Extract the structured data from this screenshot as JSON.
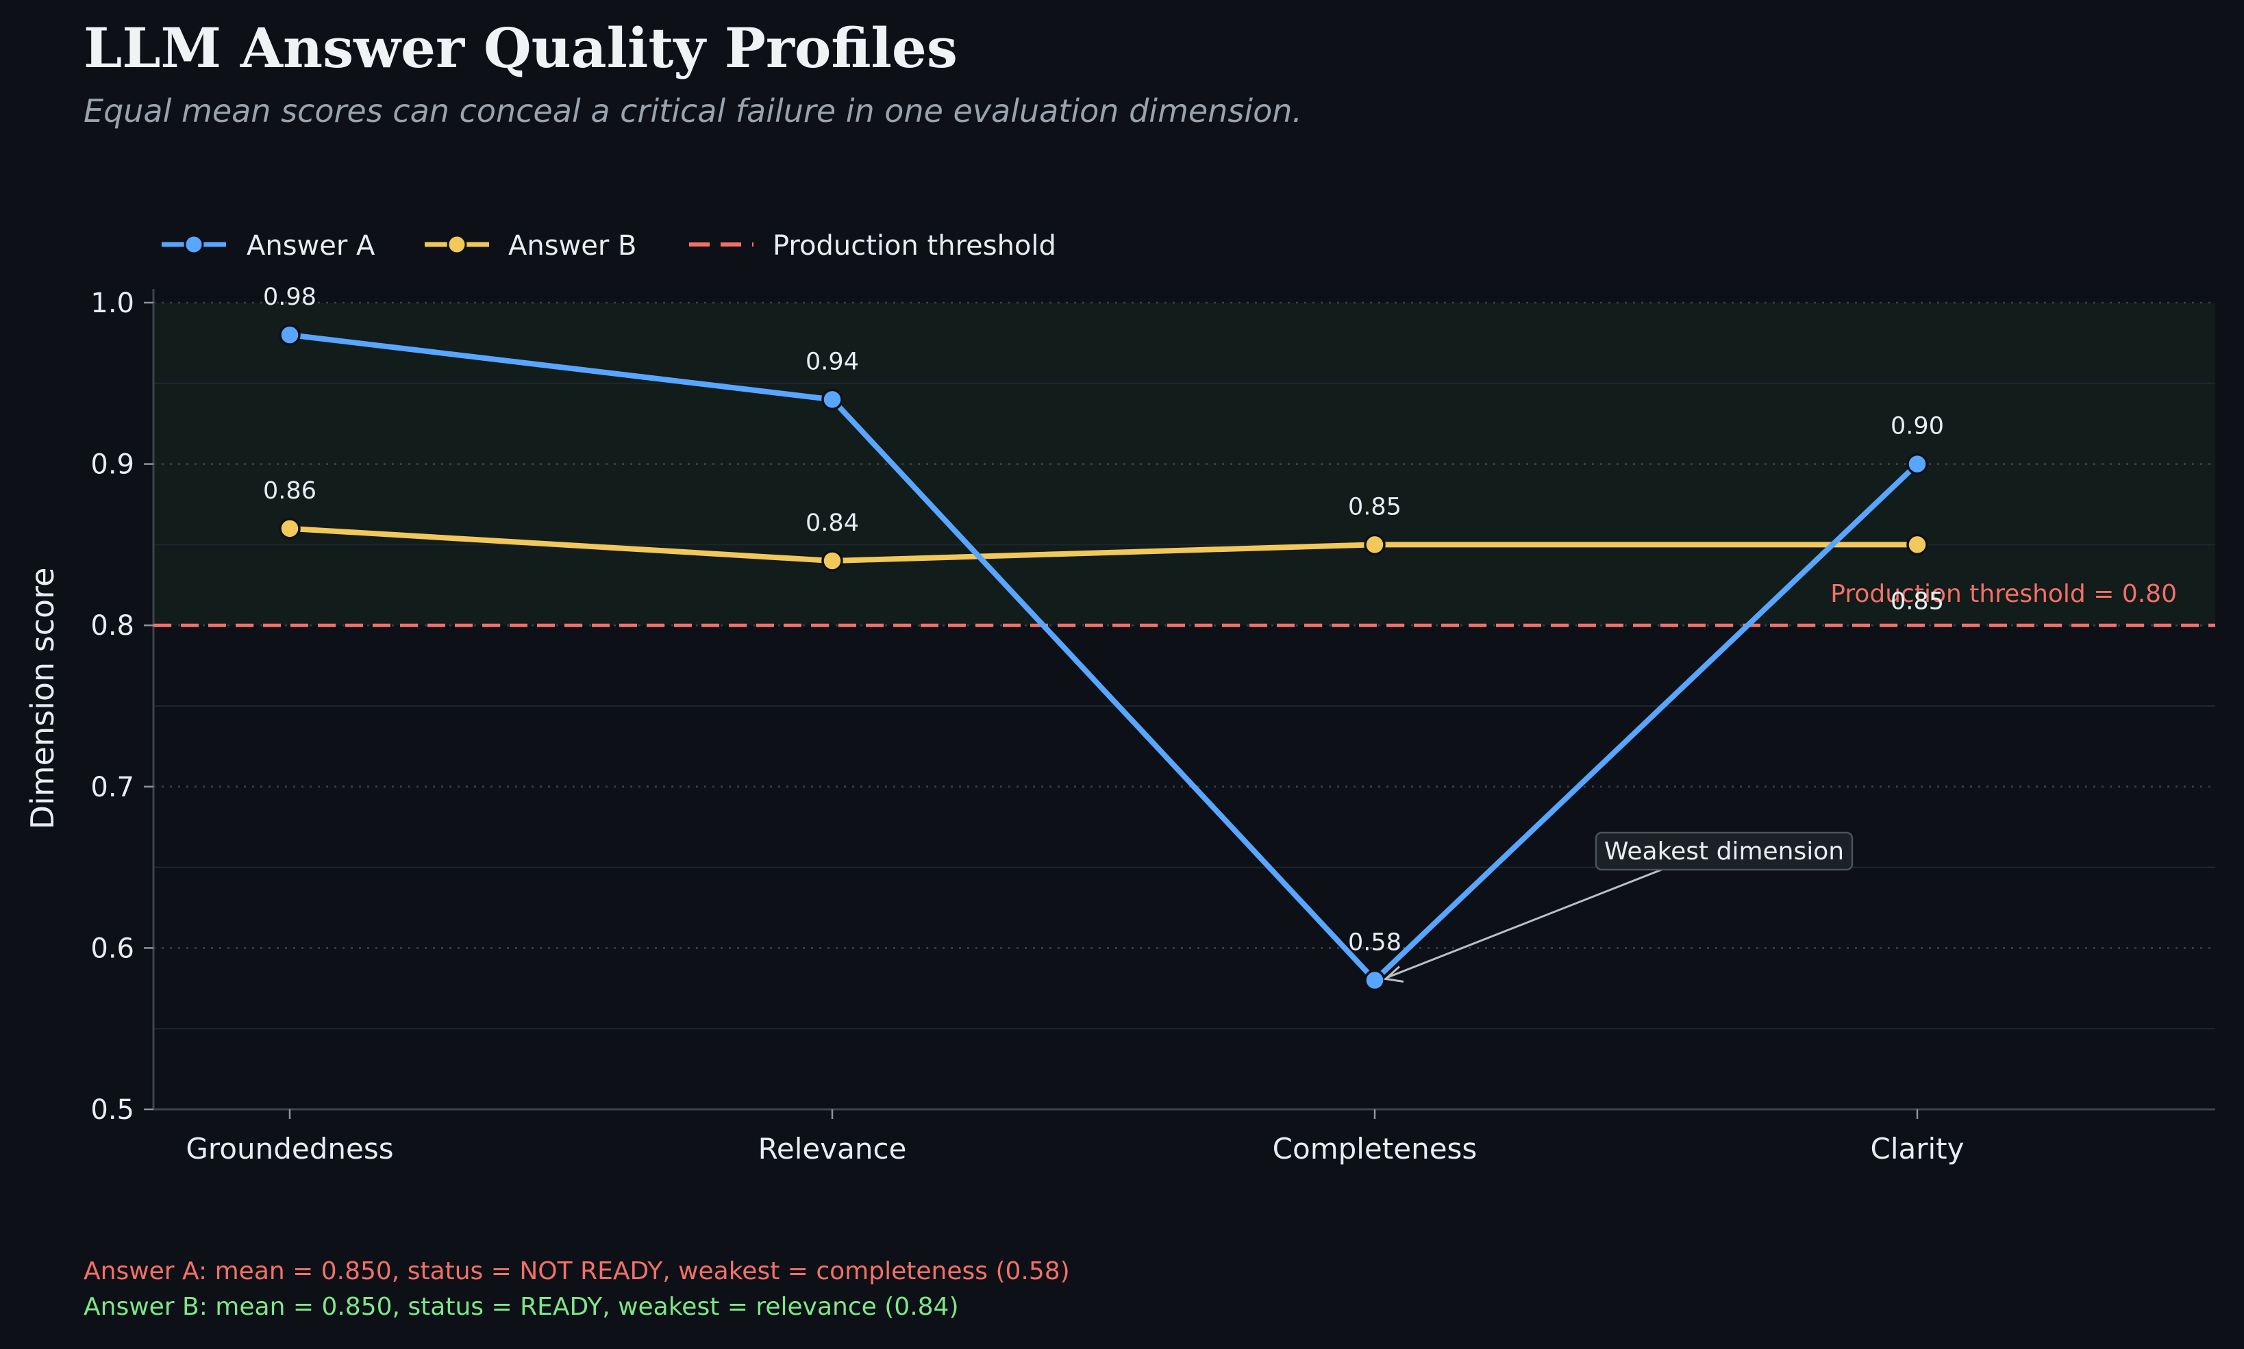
{
  "title": "LLM Answer Quality Profiles",
  "subtitle": "Equal mean scores can conceal a critical failure in one evaluation dimension.",
  "colors": {
    "background": "#0d1117",
    "series_a": "#58a6ff",
    "series_b": "#f2c85b",
    "threshold": "#f47067",
    "ready_text": "#7ee787",
    "not_ready_text": "#f47067",
    "grid": "#30363d",
    "pass_zone": "#121c1b"
  },
  "legend": {
    "position": "top-left",
    "items": [
      {
        "label": "Answer A",
        "kind": "line-marker",
        "color": "#58a6ff"
      },
      {
        "label": "Answer B",
        "kind": "line-marker",
        "color": "#f2c85b"
      },
      {
        "label": "Production threshold",
        "kind": "dashed-line",
        "color": "#f47067"
      }
    ]
  },
  "chart_data": {
    "type": "line",
    "categories": [
      "Groundedness",
      "Relevance",
      "Completeness",
      "Clarity"
    ],
    "series": [
      {
        "name": "Answer A",
        "values": [
          0.98,
          0.94,
          0.58,
          0.9
        ],
        "labels": [
          "0.98",
          "0.94",
          "0.58",
          "0.90"
        ]
      },
      {
        "name": "Answer B",
        "values": [
          0.86,
          0.84,
          0.85,
          0.85
        ],
        "labels": [
          "0.86",
          "0.84",
          "0.85",
          "0.85"
        ]
      }
    ],
    "xlabel": "",
    "ylabel": "Dimension score",
    "ylim": [
      0.5,
      1.0
    ],
    "yticks": [
      0.5,
      0.6,
      0.7,
      0.8,
      0.9,
      1.0
    ],
    "ytick_labels": [
      "0.5",
      "0.6",
      "0.7",
      "0.8",
      "0.9",
      "1.0"
    ],
    "grid": true,
    "threshold": {
      "value": 0.8,
      "label": "Production threshold = 0.80"
    },
    "shaded_region": {
      "from": 0.8,
      "to": 1.0
    },
    "annotation": {
      "text": "Weakest dimension",
      "series": "Answer A",
      "category": "Completeness",
      "value": 0.58
    }
  },
  "footer": {
    "line_a": "Answer A: mean = 0.850, status = NOT READY, weakest = completeness (0.58)",
    "line_b": "Answer B: mean = 0.850, status = READY, weakest = relevance (0.84)"
  }
}
